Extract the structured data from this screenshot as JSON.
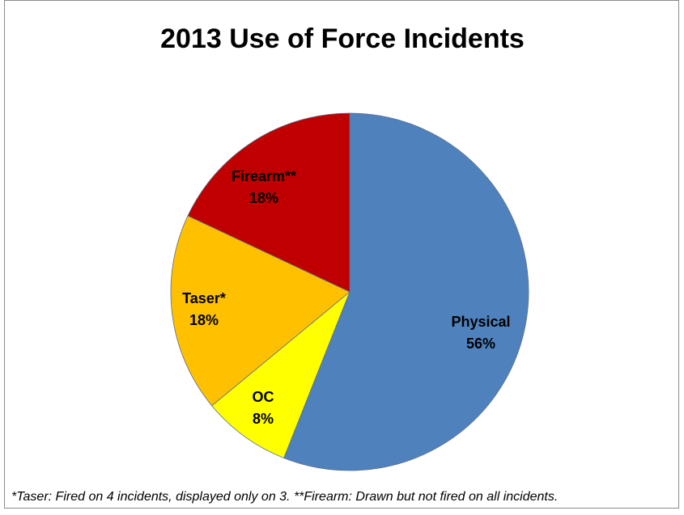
{
  "chart_data": {
    "type": "pie",
    "title": "2013 Use of Force Incidents",
    "start_angle_deg": 0,
    "direction": "clockwise",
    "slices": [
      {
        "name": "Physical",
        "value": 56,
        "label_line1": "Physical",
        "label_line2": "56%",
        "color": "#4F81BD"
      },
      {
        "name": "OC",
        "value": 8,
        "label_line1": "OC",
        "label_line2": "8%",
        "color": "#FFFF00"
      },
      {
        "name": "Taser*",
        "value": 18,
        "label_line1": "Taser*",
        "label_line2": "18%",
        "color": "#FFC000"
      },
      {
        "name": "Firearm**",
        "value": 18,
        "label_line1": "Firearm**",
        "label_line2": "18%",
        "color": "#C00000"
      }
    ],
    "footnote": "*Taser: Fired on 4 incidents, displayed only on 3. **Firearm: Drawn but not fired on all incidents."
  }
}
